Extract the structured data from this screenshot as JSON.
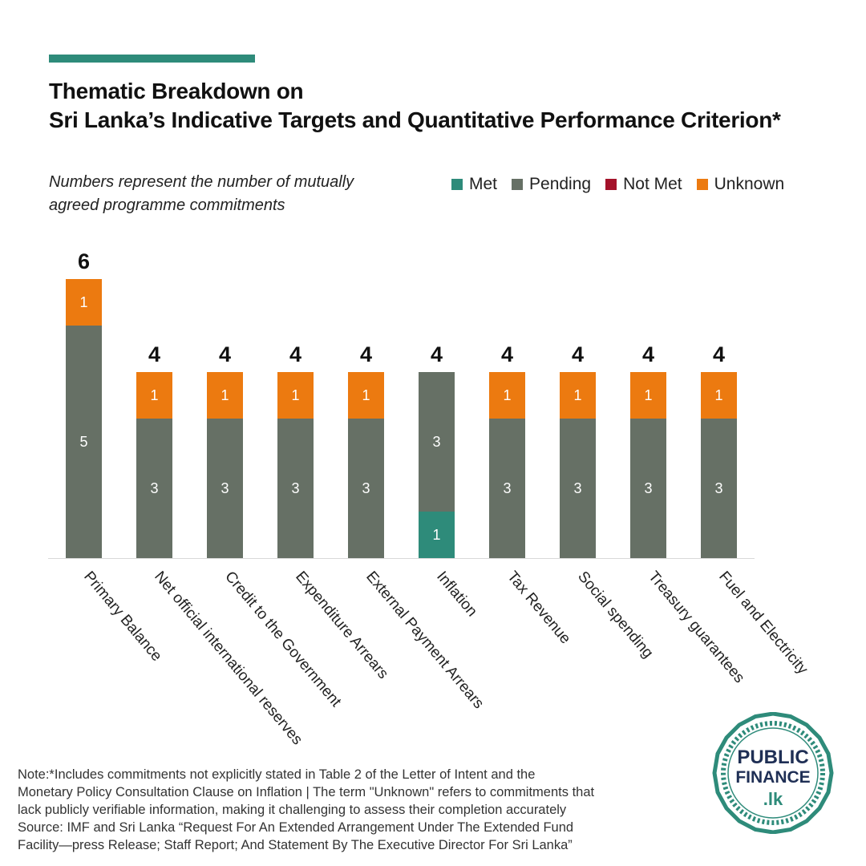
{
  "header": {
    "title_line1": "Thematic Breakdown on",
    "title_line2": "Sri Lanka’s Indicative Targets and Quantitative Performance Criterion*",
    "subtitle_line1": "Numbers represent the number of mutually",
    "subtitle_line2": "agreed programme commitments"
  },
  "legend": [
    {
      "label": "Met",
      "color": "#2e8b7a"
    },
    {
      "label": "Pending",
      "color": "#667065"
    },
    {
      "label": "Not Met",
      "color": "#a4122a"
    },
    {
      "label": "Unknown",
      "color": "#ec7a10"
    }
  ],
  "chart_data": {
    "type": "bar",
    "stacked": true,
    "categories": [
      "Primary Balance",
      "Net official international reserves",
      "Credit to the Government",
      "Expenditure Arrears",
      "External Payment Arrears",
      "Inflation",
      "Tax Revenue",
      "Social spending",
      "Treasury guarantees",
      "Fuel and Electricity"
    ],
    "series": [
      {
        "name": "Met",
        "color": "#2e8b7a",
        "values": [
          0,
          0,
          0,
          0,
          0,
          1,
          0,
          0,
          0,
          0
        ]
      },
      {
        "name": "Pending",
        "color": "#667065",
        "values": [
          5,
          3,
          3,
          3,
          3,
          3,
          3,
          3,
          3,
          3
        ]
      },
      {
        "name": "Not Met",
        "color": "#a4122a",
        "values": [
          0,
          0,
          0,
          0,
          0,
          0,
          0,
          0,
          0,
          0
        ]
      },
      {
        "name": "Unknown",
        "color": "#ec7a10",
        "values": [
          1,
          1,
          1,
          1,
          1,
          0,
          1,
          1,
          1,
          1
        ]
      }
    ],
    "totals": [
      6,
      4,
      4,
      4,
      4,
      4,
      4,
      4,
      4,
      4
    ],
    "ylim": [
      0,
      6
    ]
  },
  "footer": {
    "note_line1": "Note:*Includes  commitments not explicitly stated in Table 2 of the Letter of Intent and the",
    "note_line2": "Monetary Policy Consultation Clause on Inflation | The term \"Unknown\" refers to commitments that",
    "note_line3": "lack publicly verifiable information, making it challenging to assess their completion accurately",
    "source_line1": "Source: IMF and Sri Lanka “Request For An Extended Arrangement Under The Extended Fund",
    "source_line2": "Facility—press Release; Staff Report; And Statement By The Executive Director For Sri Lanka”"
  },
  "logo": {
    "line1": "PUBLIC",
    "line2": "FINANCE",
    "line3": ".lk"
  }
}
